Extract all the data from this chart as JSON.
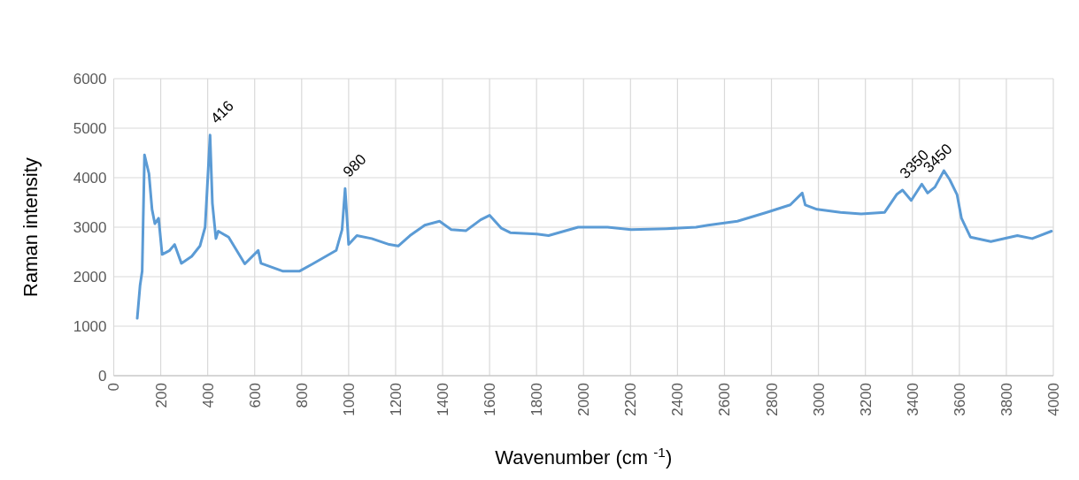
{
  "chart_data": {
    "type": "line",
    "xlabel": "Wavenumber (cm $^{-1}$)",
    "ylabel": "Raman intensity",
    "xlim": [
      0,
      4000
    ],
    "xticks": [
      0,
      200,
      400,
      600,
      800,
      1000,
      1200,
      1400,
      1600,
      1800,
      2000,
      2200,
      2400,
      2600,
      2800,
      3000,
      3200,
      3400,
      3600,
      3800,
      4000
    ],
    "ylim": [
      0,
      6000
    ],
    "yticks": [
      0,
      1000,
      2000,
      3000,
      4000,
      5000,
      6000
    ],
    "grid": true,
    "marker": "none",
    "line_style": "solid",
    "series": [
      {
        "color": "#5b9bd5",
        "x": [
          100,
          112,
          121,
          131,
          150,
          163,
          175,
          191,
          206,
          238,
          259,
          288,
          332,
          367,
          389,
          410,
          420,
          435,
          445,
          489,
          558,
          615,
          627,
          721,
          790,
          847,
          947,
          972,
          985,
          1000,
          1035,
          1098,
          1173,
          1211,
          1261,
          1324,
          1387,
          1437,
          1500,
          1562,
          1600,
          1650,
          1688,
          1801,
          1851,
          1977,
          2102,
          2203,
          2353,
          2479,
          2530,
          2655,
          2780,
          2880,
          2931,
          2944,
          2994,
          3094,
          3182,
          3282,
          3333,
          3358,
          3395,
          3440,
          3465,
          3496,
          3534,
          3559,
          3590,
          3609,
          3647,
          3734,
          3847,
          3910,
          3992
        ],
        "values": [
          1160,
          1820,
          2110,
          4460,
          4080,
          3360,
          3070,
          3180,
          2450,
          2530,
          2650,
          2270,
          2410,
          2620,
          3000,
          4860,
          3480,
          2770,
          2920,
          2800,
          2260,
          2530,
          2270,
          2110,
          2110,
          2260,
          2530,
          2950,
          3780,
          2650,
          2830,
          2770,
          2650,
          2620,
          2830,
          3040,
          3120,
          2950,
          2930,
          3150,
          3240,
          2980,
          2890,
          2860,
          2830,
          3000,
          3000,
          2950,
          2970,
          3000,
          3040,
          3120,
          3300,
          3450,
          3690,
          3450,
          3360,
          3300,
          3270,
          3300,
          3660,
          3750,
          3540,
          3870,
          3690,
          3810,
          4140,
          3960,
          3660,
          3180,
          2800,
          2710,
          2830,
          2770,
          2920
        ]
      }
    ],
    "annotations": [
      {
        "text": "416",
        "x": 416,
        "y": 4860
      },
      {
        "text": "980",
        "x": 980,
        "y": 3780
      },
      {
        "text": "3350",
        "x": 3350,
        "y": 3750
      },
      {
        "text": "3450",
        "x": 3450,
        "y": 3870
      }
    ]
  }
}
